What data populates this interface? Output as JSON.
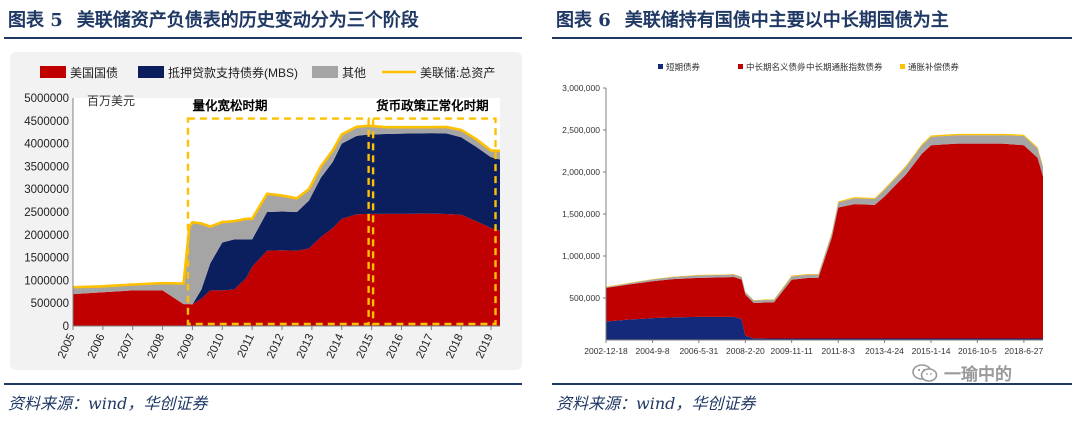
{
  "left": {
    "fig_label": "图表 5",
    "title": "美联储资产负债表的历史变动分为三个阶段",
    "source": "资料来源：wind，华创证券",
    "unit_label": "百万美元",
    "annotations": [
      "量化宽松时期",
      "货币政策正常化时期"
    ]
  },
  "right": {
    "fig_label": "图表 6",
    "title": "美联储持有国债中主要以中长期国债为主",
    "source": "资料来源：wind，华创证券"
  },
  "watermark": "一瑜中的",
  "chart_data": [
    {
      "type": "area",
      "x": [
        2005,
        2006,
        2007,
        2008,
        2008.7,
        2008.9,
        2009.0,
        2009.3,
        2009.6,
        2010.0,
        2010.4,
        2010.8,
        2011.0,
        2011.5,
        2012.0,
        2012.5,
        2012.9,
        2013.3,
        2013.7,
        2014.0,
        2014.5,
        2014.9,
        2015.5,
        2016.0,
        2017.0,
        2017.5,
        2018.0,
        2018.5,
        2019.0,
        2019.3
      ],
      "series": [
        {
          "name": "美国国债",
          "color": "#c00000",
          "values": [
            700000,
            740000,
            780000,
            780000,
            480000,
            480000,
            475000,
            600000,
            780000,
            780000,
            800000,
            1050000,
            1300000,
            1650000,
            1660000,
            1650000,
            1700000,
            1950000,
            2150000,
            2350000,
            2450000,
            2460000,
            2460000,
            2460000,
            2465000,
            2455000,
            2440000,
            2300000,
            2150000,
            2090000
          ]
        },
        {
          "name": "抵押贷款支持债券(MBS)",
          "color": "#0b1f5e",
          "values": [
            0,
            0,
            0,
            0,
            0,
            0,
            0,
            200000,
            600000,
            1050000,
            1100000,
            850000,
            600000,
            850000,
            850000,
            850000,
            1050000,
            1300000,
            1450000,
            1650000,
            1720000,
            1740000,
            1750000,
            1760000,
            1765000,
            1770000,
            1700000,
            1630000,
            1550000,
            1560000
          ]
        },
        {
          "name": "其他",
          "color": "#a5a5a5",
          "values": [
            150000,
            130000,
            130000,
            160000,
            450000,
            1700000,
            1800000,
            1450000,
            800000,
            450000,
            400000,
            450000,
            450000,
            400000,
            350000,
            300000,
            250000,
            250000,
            250000,
            200000,
            200000,
            190000,
            150000,
            140000,
            130000,
            140000,
            160000,
            170000,
            150000,
            190000
          ]
        },
        {
          "name": "美联储:总资产",
          "color": "#ffc000",
          "line": true,
          "values": [
            850000,
            870000,
            910000,
            940000,
            930000,
            2180000,
            2275000,
            2250000,
            2180000,
            2280000,
            2300000,
            2350000,
            2350000,
            2900000,
            2860000,
            2800000,
            3000000,
            3500000,
            3850000,
            4200000,
            4370000,
            4390000,
            4360000,
            4360000,
            4360000,
            4365000,
            4300000,
            4100000,
            3850000,
            3840000
          ]
        }
      ],
      "ylim": [
        0,
        5000000
      ],
      "yticks": [
        "0",
        "500000",
        "1000000",
        "1500000",
        "2000000",
        "2500000",
        "3000000",
        "3500000",
        "4000000",
        "4500000",
        "5000000"
      ],
      "xticks": [
        "2005",
        "2006",
        "2007",
        "2008",
        "2009",
        "2010",
        "2011",
        "2012",
        "2013",
        "2014",
        "2015",
        "2016",
        "2017",
        "2018",
        "2019"
      ],
      "legend": "top",
      "grid": false
    },
    {
      "type": "area",
      "x": [
        "2002-12-18",
        "2003-12",
        "2004-9-8",
        "2005-6",
        "2006-5-31",
        "2007-4",
        "2007-9",
        "2008-1",
        "2008-2-20",
        "2008-6",
        "2008-12",
        "2009-3",
        "2009-11-11",
        "2010-6",
        "2010-11",
        "2011-5",
        "2011-8-3",
        "2012-3",
        "2012-12",
        "2013-4-24",
        "2014-2",
        "2014-9",
        "2015-1-14",
        "2016-1",
        "2016-10-5",
        "2017-9",
        "2018-6-27",
        "2019-1",
        "2019-3"
      ],
      "x_num": [
        2002.96,
        2003.9,
        2004.69,
        2005.45,
        2006.41,
        2007.3,
        2007.7,
        2008.0,
        2008.14,
        2008.45,
        2008.95,
        2009.2,
        2009.86,
        2010.45,
        2010.85,
        2011.35,
        2011.59,
        2012.2,
        2012.95,
        2013.31,
        2014.1,
        2014.7,
        2015.04,
        2016.0,
        2016.76,
        2017.7,
        2018.49,
        2019.0,
        2019.2
      ],
      "series": [
        {
          "name": "短期债券",
          "color": "#14297a",
          "values": [
            220000,
            245000,
            260000,
            270000,
            275000,
            275000,
            275000,
            250000,
            50000,
            20000,
            18000,
            18000,
            18000,
            18000,
            18000,
            18000,
            18000,
            18000,
            18000,
            18000,
            18000,
            18000,
            18000,
            18000,
            18000,
            18000,
            18000,
            18000,
            18000
          ]
        },
        {
          "name": "中长期名义债券",
          "color": "#c00000",
          "values": [
            400000,
            420000,
            440000,
            455000,
            465000,
            470000,
            475000,
            470000,
            490000,
            420000,
            430000,
            430000,
            700000,
            720000,
            720000,
            1200000,
            1560000,
            1600000,
            1590000,
            1690000,
            1950000,
            2200000,
            2300000,
            2320000,
            2320000,
            2320000,
            2300000,
            2150000,
            1930000
          ]
        },
        {
          "name": "中长期通胀指数债券",
          "color": "#a5a5a5",
          "values": [
            10000,
            15000,
            20000,
            25000,
            30000,
            30000,
            30000,
            30000,
            30000,
            30000,
            30000,
            30000,
            40000,
            40000,
            40000,
            50000,
            60000,
            70000,
            70000,
            80000,
            90000,
            100000,
            100000,
            100000,
            100000,
            100000,
            110000,
            110000,
            110000
          ]
        },
        {
          "name": "通胀补偿债券",
          "color": "#ffc000",
          "values": [
            5000,
            5000,
            5000,
            5000,
            5000,
            5000,
            5000,
            5000,
            5000,
            5000,
            5000,
            5000,
            8000,
            8000,
            8000,
            10000,
            12000,
            13000,
            13000,
            14000,
            15000,
            16000,
            16000,
            16000,
            16000,
            16000,
            16000,
            16000,
            16000
          ]
        }
      ],
      "ylim": [
        0,
        3000000
      ],
      "yticks": [
        "500,000",
        "1,000,000",
        "1,500,000",
        "2,000,000",
        "2,500,000",
        "3,000,000"
      ],
      "xticks": [
        "2002-12-18",
        "2004-9-8",
        "2006-5-31",
        "2008-2-20",
        "2009-11-11",
        "2011-8-3",
        "2013-4-24",
        "2015-1-14",
        "2016-10-5",
        "2018-6-27"
      ],
      "legend": "top",
      "grid": false
    }
  ]
}
